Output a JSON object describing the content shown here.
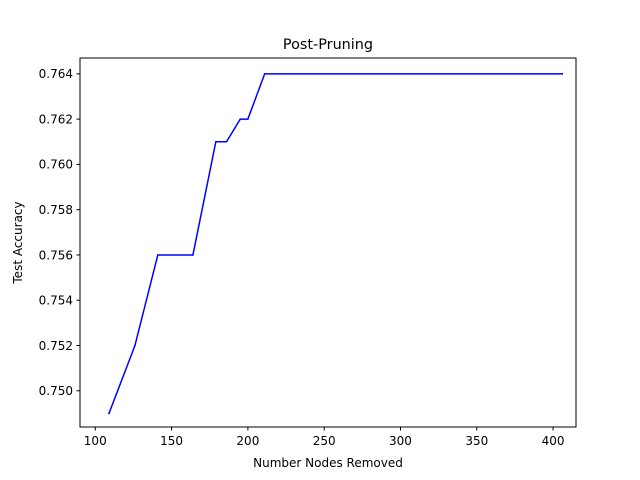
{
  "chart_data": {
    "type": "line",
    "title": "Post-Pruning",
    "xlabel": "Number Nodes Removed",
    "ylabel": "Test Accuracy",
    "xlim": [
      90,
      415
    ],
    "ylim": [
      0.7484,
      0.7647
    ],
    "xticks": [
      100,
      150,
      200,
      250,
      300,
      350,
      400
    ],
    "xtick_labels": [
      "100",
      "150",
      "200",
      "250",
      "300",
      "350",
      "400"
    ],
    "yticks": [
      0.75,
      0.752,
      0.754,
      0.756,
      0.758,
      0.76,
      0.762,
      0.764
    ],
    "ytick_labels": [
      "0.750",
      "0.752",
      "0.754",
      "0.756",
      "0.758",
      "0.760",
      "0.762",
      "0.764"
    ],
    "grid": false,
    "series": [
      {
        "color": "#0000ff",
        "x": [
          109,
          126,
          141,
          164,
          179,
          186,
          195,
          200,
          211,
          406
        ],
        "y": [
          0.749,
          0.752,
          0.756,
          0.756,
          0.761,
          0.761,
          0.762,
          0.762,
          0.764,
          0.764
        ]
      }
    ]
  }
}
